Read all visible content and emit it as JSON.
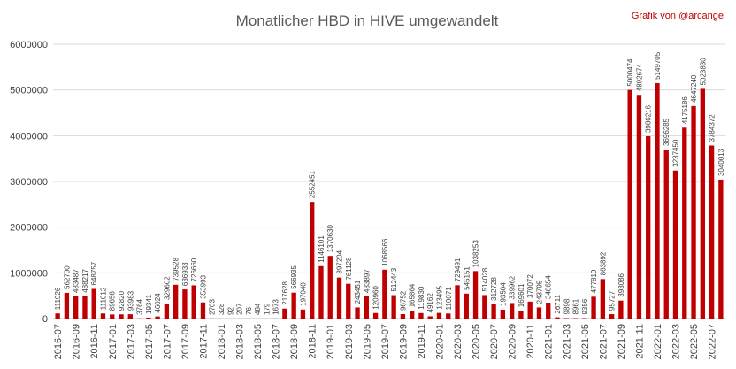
{
  "chart_data": {
    "type": "bar",
    "title": "Monatlicher HBD in HIVE umgewandelt",
    "credit": "Grafik von @arcange",
    "xlabel": "",
    "ylabel": "",
    "ylim": [
      0,
      6000000
    ],
    "yticks": [
      "0",
      "1000000",
      "2000000",
      "3000000",
      "4000000",
      "5000000",
      "6000000"
    ],
    "grid": true,
    "legend": "none",
    "bar_color": "#c00000",
    "credit_color": "#c00000",
    "categories": [
      "2016-07",
      "2016-08",
      "2016-09",
      "2016-10",
      "2016-11",
      "2016-12",
      "2017-01",
      "2017-02",
      "2017-03",
      "2017-04",
      "2017-05",
      "2017-06",
      "2017-07",
      "2017-08",
      "2017-09",
      "2017-10",
      "2017-11",
      "2017-12",
      "2018-01",
      "2018-02",
      "2018-03",
      "2018-04",
      "2018-05",
      "2018-06",
      "2018-07",
      "2018-08",
      "2018-09",
      "2018-10",
      "2018-11",
      "2018-12",
      "2019-01",
      "2019-02",
      "2019-03",
      "2019-04",
      "2019-05",
      "2019-06",
      "2019-07",
      "2019-08",
      "2019-09",
      "2019-10",
      "2019-11",
      "2019-12",
      "2020-01",
      "2020-02",
      "2020-03",
      "2020-04",
      "2020-05",
      "2020-06",
      "2020-07",
      "2020-08",
      "2020-09",
      "2020-10",
      "2020-11",
      "2020-12",
      "2021-01",
      "2021-02",
      "2021-03",
      "2021-04",
      "2021-05",
      "2021-06",
      "2021-07",
      "2021-08",
      "2021-09",
      "2021-10",
      "2021-11",
      "2021-12",
      "2022-01",
      "2022-02",
      "2022-03",
      "2022-04",
      "2022-05",
      "2022-06",
      "2022-07",
      "2022-08"
    ],
    "values": [
      111926,
      562700,
      483487,
      488217,
      648757,
      111012,
      89656,
      92820,
      93983,
      3764,
      19341,
      46024,
      329602,
      739528,
      636933,
      726660,
      353993,
      2703,
      328,
      92,
      207,
      76,
      484,
      179,
      1673,
      217628,
      566935,
      197040,
      2552451,
      1146101,
      1370630,
      897204,
      761128,
      243451,
      483897,
      120960,
      1068566,
      512443,
      96752,
      165864,
      119830,
      49162,
      123495,
      110071,
      729491,
      545151,
      1038253,
      514028,
      312728,
      193504,
      339962,
      169601,
      370072,
      243795,
      348654,
      26711,
      9898,
      8961,
      9356,
      477819,
      863892,
      95727,
      393086,
      5000474,
      4892674,
      3986216,
      5149705,
      3696285,
      3237450,
      4175186,
      4647240,
      5023830,
      3784372,
      3040013
    ],
    "labels": [
      "111926",
      "562700",
      "483487",
      "488217",
      "648757",
      "111012",
      "89656",
      "92820",
      "93983",
      "3764",
      "19341",
      "46024",
      "329602",
      "739528",
      "636933",
      "726660",
      "353993",
      "2703",
      "328",
      "92",
      "207",
      "76",
      "484",
      "179",
      "1673",
      "217628",
      "566935",
      "197040",
      "2552451",
      "1146101",
      "1370630",
      "897204",
      "761128",
      "243451",
      "483897",
      "120960",
      "1068566",
      "512443",
      "96752",
      "165864",
      "119830",
      "49162",
      "123495",
      "110071",
      "729491",
      "545151",
      "1038253",
      "514028",
      "312728",
      "193504",
      "339962",
      "169601",
      "370072",
      "243795",
      "348654",
      "26711",
      "9898",
      "8961",
      "9356",
      "477819",
      "863892",
      "95727",
      "393086",
      "5000474",
      "4892674",
      "3986216",
      "5149705",
      "3696285",
      "3237450",
      "4175186",
      "4647240",
      "5023830",
      "3784372",
      "3040013"
    ]
  }
}
